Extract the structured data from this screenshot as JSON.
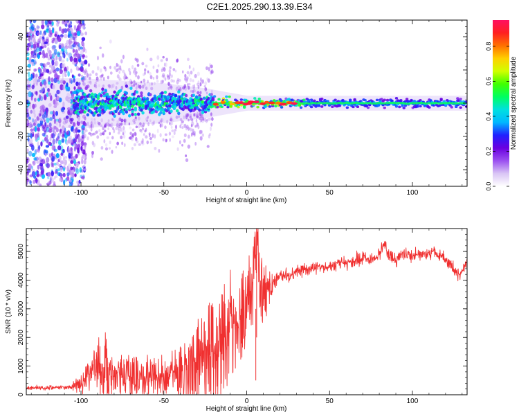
{
  "figure_title": "C2E1.2025.290.13.39.E34",
  "chart_data": [
    {
      "id": "spectrogram",
      "type": "heatmap",
      "xlabel": "Height of straight line (km)",
      "ylabel": "Frequency (Hz)",
      "xlim": [
        -133,
        133
      ],
      "ylim": [
        -50,
        50
      ],
      "xticks": [
        -100,
        -50,
        0,
        50,
        100
      ],
      "xtick_labels": [
        "-100",
        "-50",
        "0",
        "50",
        "100"
      ],
      "yticks": [
        -40,
        -20,
        0,
        20,
        40
      ],
      "ytick_labels": [
        "-40",
        "-20",
        "0",
        "20",
        "40"
      ],
      "signal_band_center_hz": 0,
      "signal_band_halfwidth_hz": [
        {
          "x": -100,
          "hz": 10
        },
        {
          "x": -50,
          "hz": 8
        },
        {
          "x": -25,
          "hz": 6
        },
        {
          "x": 0,
          "hz": 3
        },
        {
          "x": 133,
          "hz": 3
        }
      ],
      "noise_region_x": [
        -133,
        -100
      ],
      "colorbar": {
        "label": "Normalized spectral amplitude",
        "range": [
          0,
          0.95
        ],
        "ticks": [
          0.0,
          0.2,
          0.4,
          0.6,
          0.8
        ],
        "tick_labels": [
          "0.0",
          "0.2",
          "0.4",
          "0.6",
          "0.8"
        ],
        "colormap": [
          "#ffffff",
          "#d9c5f5",
          "#9b50f0",
          "#6a00e0",
          "#2020ff",
          "#00b8ff",
          "#00e0e0",
          "#00ff60",
          "#40ff00",
          "#d0ff00",
          "#ffd000",
          "#ff7000",
          "#ff2020",
          "#ff1060"
        ]
      }
    },
    {
      "id": "snr",
      "type": "line",
      "xlabel": "Height of straight line (km)",
      "ylabel": "SNR (10 * v/v)",
      "xlim": [
        -133,
        133
      ],
      "ylim": [
        0,
        5800
      ],
      "xticks": [
        -100,
        -50,
        0,
        50,
        100
      ],
      "xtick_labels": [
        "-100",
        "-50",
        "0",
        "50",
        "100"
      ],
      "yticks": [
        0,
        1000,
        2000,
        3000,
        4000,
        5000
      ],
      "ytick_labels": [
        "0",
        "1000",
        "2000",
        "3000",
        "4000",
        "5000"
      ],
      "line_color": "#f03030",
      "series": [
        {
          "name": "SNR",
          "x": [
            -133,
            -120,
            -110,
            -105,
            -100,
            -95,
            -90,
            -87,
            -85,
            -80,
            -75,
            -70,
            -65,
            -60,
            -55,
            -50,
            -45,
            -40,
            -35,
            -30,
            -25,
            -20,
            -18,
            -15,
            -10,
            -5,
            -2,
            0,
            2,
            5,
            6,
            8,
            10,
            15,
            20,
            25,
            30,
            35,
            40,
            45,
            50,
            55,
            60,
            65,
            70,
            75,
            80,
            84,
            85,
            90,
            95,
            100,
            105,
            110,
            113,
            115,
            118,
            120,
            125,
            128,
            130,
            133
          ],
          "y": [
            230,
            240,
            260,
            300,
            380,
            600,
            900,
            1200,
            1000,
            800,
            650,
            650,
            640,
            650,
            660,
            680,
            720,
            800,
            950,
            1150,
            1350,
            1500,
            1300,
            1800,
            2300,
            2500,
            3000,
            3200,
            3600,
            3900,
            5000,
            3700,
            3700,
            3800,
            4200,
            4100,
            4300,
            4350,
            4400,
            4450,
            4500,
            4550,
            4600,
            4650,
            4800,
            4700,
            4900,
            5300,
            4900,
            4700,
            5000,
            4800,
            4900,
            4900,
            5050,
            4850,
            4900,
            4750,
            4400,
            4150,
            4300,
            4650
          ]
        }
      ],
      "noise_halfwidth": [
        {
          "x": -133,
          "v": 80
        },
        {
          "x": -105,
          "v": 100
        },
        {
          "x": -95,
          "v": 400
        },
        {
          "x": -87,
          "v": 900
        },
        {
          "x": -80,
          "v": 450
        },
        {
          "x": -50,
          "v": 480
        },
        {
          "x": -30,
          "v": 900
        },
        {
          "x": -18,
          "v": 1500
        },
        {
          "x": -10,
          "v": 1300
        },
        {
          "x": 0,
          "v": 900
        },
        {
          "x": 6,
          "v": 1200
        },
        {
          "x": 10,
          "v": 700
        },
        {
          "x": 20,
          "v": 300
        },
        {
          "x": 40,
          "v": 260
        },
        {
          "x": 80,
          "v": 280
        },
        {
          "x": 133,
          "v": 250
        }
      ]
    }
  ]
}
